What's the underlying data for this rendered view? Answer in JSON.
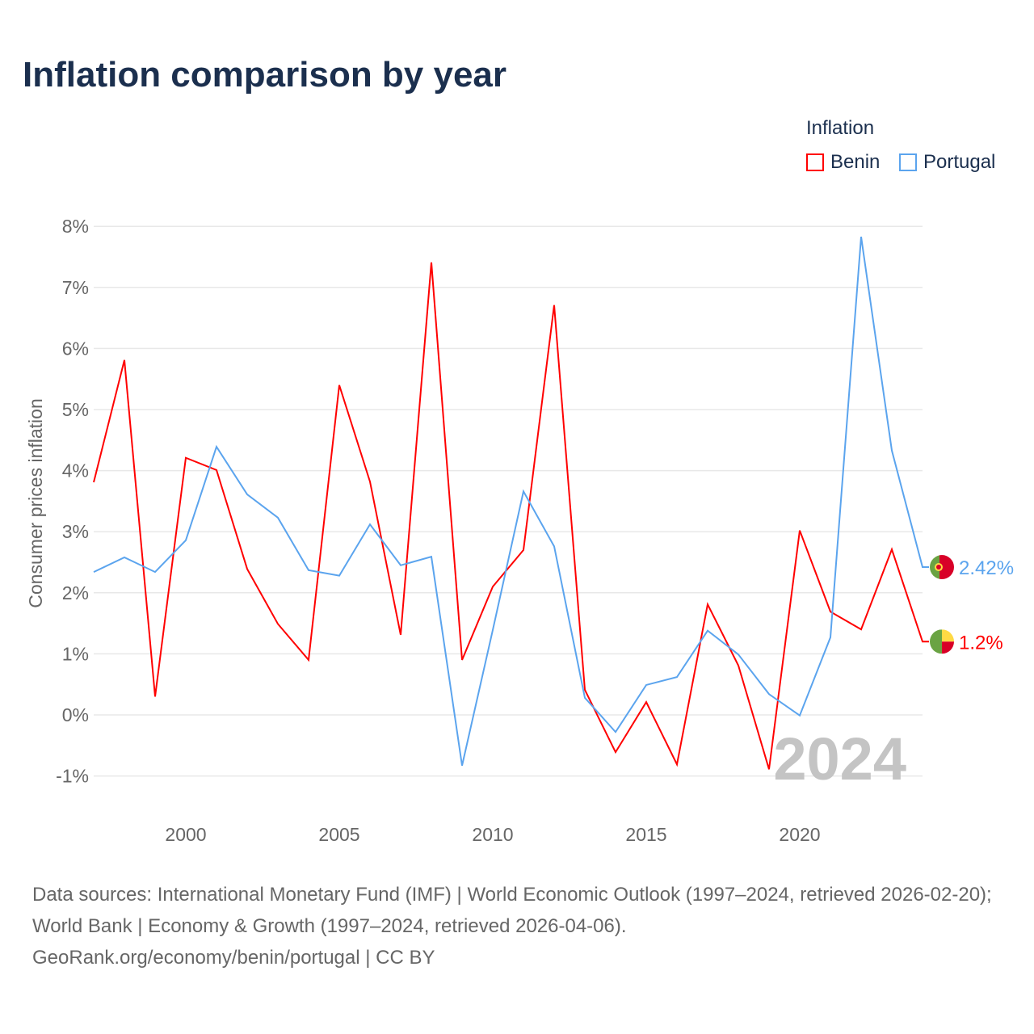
{
  "title": "Inflation comparison by year",
  "legend": {
    "title": "Inflation",
    "items": [
      {
        "name": "Benin",
        "color": "#ff0000"
      },
      {
        "name": "Portugal",
        "color": "#5ba4ee"
      }
    ]
  },
  "chart_data": {
    "type": "line",
    "title": "Inflation comparison by year",
    "xlabel": "",
    "ylabel": "Consumer prices inflation",
    "x": [
      1997,
      1998,
      1999,
      2000,
      2001,
      2002,
      2003,
      2004,
      2005,
      2006,
      2007,
      2008,
      2009,
      2010,
      2011,
      2012,
      2013,
      2014,
      2015,
      2016,
      2017,
      2018,
      2019,
      2020,
      2021,
      2022,
      2023,
      2024
    ],
    "xlim": [
      1997,
      2024
    ],
    "ylim": [
      -1,
      8
    ],
    "xticks": [
      2000,
      2005,
      2010,
      2015,
      2020
    ],
    "yticks": [
      -1,
      0,
      1,
      2,
      3,
      4,
      5,
      6,
      7,
      8
    ],
    "ytick_labels": [
      "-1%",
      "0%",
      "1%",
      "2%",
      "3%",
      "4%",
      "5%",
      "6%",
      "7%",
      "8%"
    ],
    "grid": true,
    "legend_position": "top-right",
    "series": [
      {
        "name": "Benin",
        "color": "#ff0000",
        "end_label": "1.2%",
        "values": [
          3.81,
          5.81,
          0.3,
          4.21,
          4.01,
          2.39,
          1.49,
          0.9,
          5.4,
          3.82,
          1.31,
          7.41,
          0.9,
          2.1,
          2.7,
          6.71,
          0.41,
          -0.61,
          0.21,
          -0.81,
          1.81,
          0.81,
          -0.89,
          3.02,
          1.69,
          1.4,
          2.71,
          1.2
        ]
      },
      {
        "name": "Portugal",
        "color": "#5ba4ee",
        "end_label": "2.42%",
        "values": [
          2.34,
          2.58,
          2.34,
          2.86,
          4.39,
          3.61,
          3.23,
          2.37,
          2.28,
          3.12,
          2.45,
          2.59,
          -0.83,
          1.39,
          3.66,
          2.76,
          0.28,
          -0.28,
          0.49,
          0.62,
          1.38,
          0.99,
          0.34,
          -0.01,
          1.27,
          7.83,
          4.33,
          2.42
        ]
      }
    ],
    "annotation": "2024"
  },
  "footer": {
    "sources": "Data sources: International Monetary Fund (IMF) | World Economic Outlook (1997–2024, retrieved 2026-02-20); World Bank | Economy & Growth (1997–2024, retrieved 2026-04-06).",
    "credit": "GeoRank.org/economy/benin/portugal | CC BY"
  }
}
